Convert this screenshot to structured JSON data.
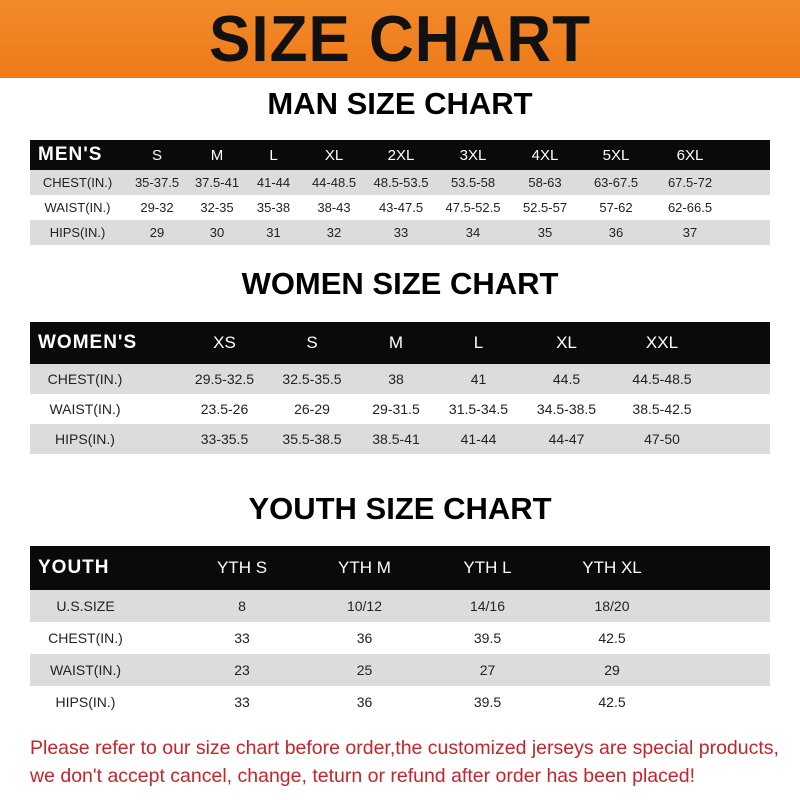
{
  "banner": {
    "title": "SIZE CHART",
    "color": "#ee7a18"
  },
  "men": {
    "title": "MAN SIZE CHART",
    "header": [
      "MEN'S",
      "S",
      "M",
      "L",
      "XL",
      "2XL",
      "3XL",
      "4XL",
      "5XL",
      "6XL"
    ],
    "rows": [
      [
        "CHEST(IN.)",
        "35-37.5",
        "37.5-41",
        "41-44",
        "44-48.5",
        "48.5-53.5",
        "53.5-58",
        "58-63",
        "63-67.5",
        "67.5-72"
      ],
      [
        "WAIST(IN.)",
        "29-32",
        "32-35",
        "35-38",
        "38-43",
        "43-47.5",
        "47.5-52.5",
        "52.5-57",
        "57-62",
        "62-66.5"
      ],
      [
        "HIPS(IN.)",
        "29",
        "30",
        "31",
        "32",
        "33",
        "34",
        "35",
        "36",
        "37"
      ]
    ]
  },
  "women": {
    "title": "WOMEN SIZE CHART",
    "header": [
      "WOMEN'S",
      "XS",
      "S",
      "M",
      "L",
      "XL",
      "XXL"
    ],
    "rows": [
      [
        "CHEST(IN.)",
        "29.5-32.5",
        "32.5-35.5",
        "38",
        "41",
        "44.5",
        "44.5-48.5"
      ],
      [
        "WAIST(IN.)",
        "23.5-26",
        "26-29",
        "29-31.5",
        "31.5-34.5",
        "34.5-38.5",
        "38.5-42.5"
      ],
      [
        "HIPS(IN.)",
        "33-35.5",
        "35.5-38.5",
        "38.5-41",
        "41-44",
        "44-47",
        "47-50"
      ]
    ]
  },
  "youth": {
    "title": "YOUTH SIZE CHART",
    "header": [
      "YOUTH",
      "YTH S",
      "YTH M",
      "YTH L",
      "YTH XL"
    ],
    "rows": [
      [
        "U.S.SIZE",
        "8",
        "10/12",
        "14/16",
        "18/20"
      ],
      [
        "CHEST(IN.)",
        "33",
        "36",
        "39.5",
        "42.5"
      ],
      [
        "WAIST(IN.)",
        "23",
        "25",
        "27",
        "29"
      ],
      [
        "HIPS(IN.)",
        "33",
        "36",
        "39.5",
        "42.5"
      ]
    ]
  },
  "note": {
    "line1": "Please refer to our size chart before order,the customized jerseys are special products,",
    "line2": "we don't accept cancel, change, teturn or refund after order has been placed!",
    "color": "#c0262c"
  }
}
